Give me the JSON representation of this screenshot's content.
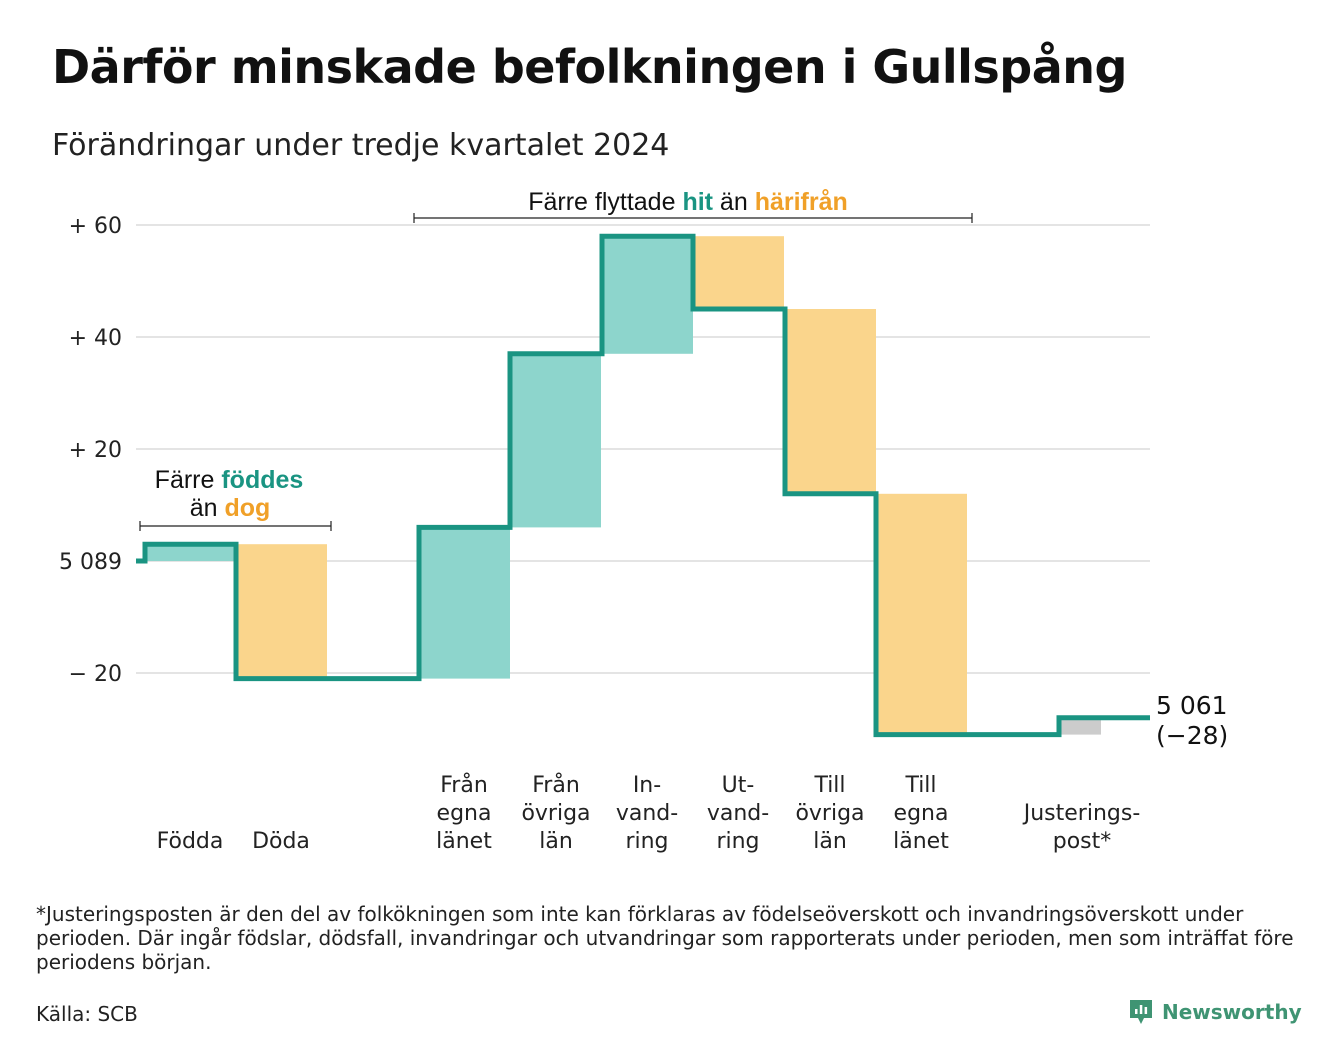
{
  "title": "Därför minskade befolkningen i Gullspång",
  "subtitle": "Förändringar under tredje kvartalet 2024",
  "colors": {
    "inflow": "#8dd5cc",
    "outflow": "#fad58c",
    "adjustment": "#cccccc",
    "line": "#1a9482",
    "teal_text": "#1a9482",
    "orange_text": "#f0a028",
    "grid": "#e4e4e4"
  },
  "chart_data": {
    "type": "waterfall",
    "start_value": 5089,
    "end_value": 5061,
    "end_label": "5 061",
    "end_change_label": "(−28)",
    "y_tick_labels": [
      "+ 60",
      "+ 40",
      "+ 20",
      "5 089",
      "− 20"
    ],
    "y_tick_values": [
      60,
      40,
      20,
      0,
      -20
    ],
    "ylim_relative": [
      -35,
      64
    ],
    "grid": true,
    "steps": [
      {
        "label_lines": [
          "Födda"
        ],
        "kind": "in",
        "change": 3
      },
      {
        "label_lines": [
          "Döda"
        ],
        "kind": "out",
        "change": -24
      },
      {
        "label_lines": [
          "Från",
          "egna",
          "länet"
        ],
        "kind": "in",
        "change": 27
      },
      {
        "label_lines": [
          "Från",
          "övriga",
          "län"
        ],
        "kind": "in",
        "change": 31
      },
      {
        "label_lines": [
          "In-",
          "vand-",
          "ring"
        ],
        "kind": "in",
        "change": 21
      },
      {
        "label_lines": [
          "Ut-",
          "vand-",
          "ring"
        ],
        "kind": "out",
        "change": -13
      },
      {
        "label_lines": [
          "Till",
          "övriga",
          "län"
        ],
        "kind": "out",
        "change": -33
      },
      {
        "label_lines": [
          "Till",
          "egna",
          "länet"
        ],
        "kind": "out",
        "change": -43
      },
      {
        "label_lines": [
          "Justerings-",
          "post*"
        ],
        "kind": "adj",
        "change": 3
      }
    ],
    "annotations": [
      {
        "id": "births",
        "line1": "Färre ",
        "line1_hl": "föddes",
        "line2": "än ",
        "line2_hl": "dog"
      },
      {
        "id": "migration",
        "text1": "Färre flyttade ",
        "hl1": "hit",
        "text2": " än ",
        "hl2": "härifrån"
      }
    ]
  },
  "footnote": "*Justeringsposten är den del av folkökningen som inte kan förklaras av födelseöverskott och invandringsöverskott under perioden. Där ingår födslar, dödsfall, invandringar och utvandringar som rapporterats under perioden, men som inträffat före periodens början.",
  "source": "Källa: SCB",
  "brand": {
    "name": "Newsworthy",
    "icon": "newsworthy-logo-icon"
  }
}
